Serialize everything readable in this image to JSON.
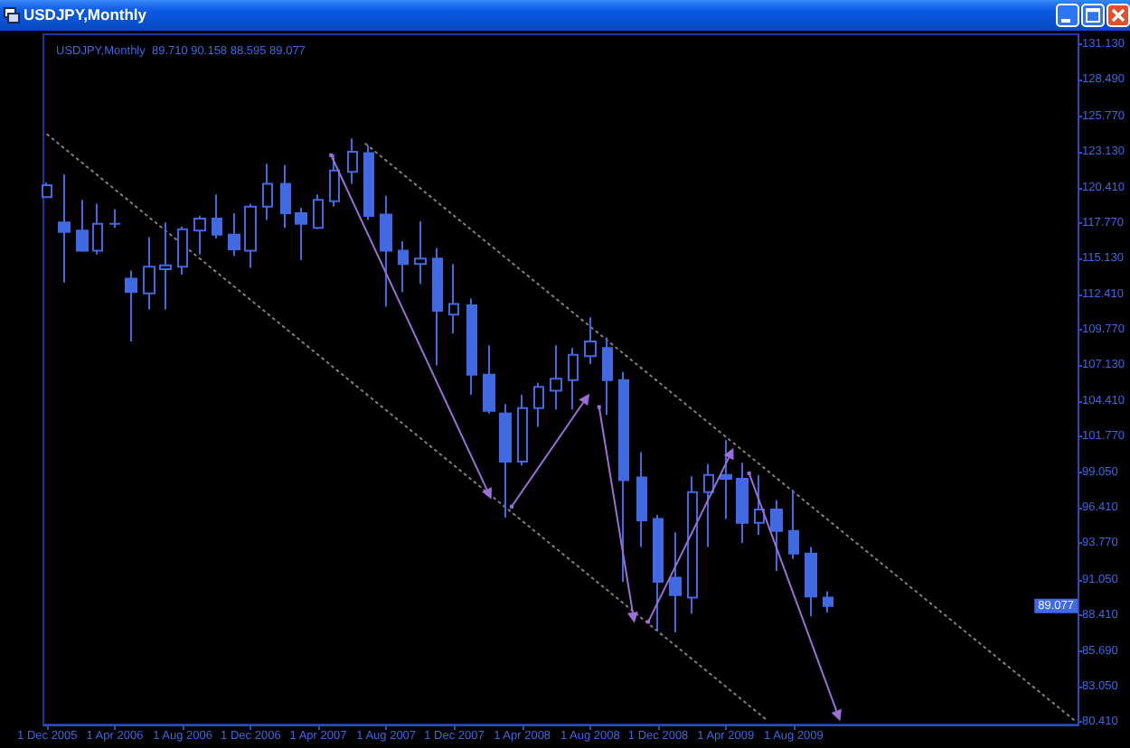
{
  "chart_data": {
    "type": "candlestick",
    "title": "USDJPY,Monthly",
    "subtitle": "USDJPY,Monthly  89.710 90.158 88.595 89.077",
    "series": [
      {
        "color": "#4169e1",
        "x": [
          "2005-12",
          "2006-01",
          "2006-02",
          "2006-03",
          "2006-04",
          "2006-05",
          "2006-06",
          "2006-07",
          "2006-08",
          "2006-09",
          "2006-10",
          "2006-11",
          "2006-12",
          "2007-01",
          "2007-02",
          "2007-03",
          "2007-04",
          "2007-05",
          "2007-06",
          "2007-07",
          "2007-08",
          "2007-09",
          "2007-10",
          "2007-11",
          "2007-12",
          "2008-01",
          "2008-02",
          "2008-03",
          "2008-04",
          "2008-05",
          "2008-06",
          "2008-07",
          "2008-08",
          "2008-09",
          "2008-10",
          "2008-11",
          "2008-12",
          "2009-01",
          "2009-02",
          "2009-03",
          "2009-04",
          "2009-05",
          "2009-06",
          "2009-07",
          "2009-08",
          "2009-09",
          "2009-10"
        ],
        "ohlc": [
          [
            119.7,
            120.8,
            119.7,
            120.6
          ],
          [
            117.8,
            121.4,
            113.3,
            117.1
          ],
          [
            117.2,
            119.5,
            115.6,
            115.7
          ],
          [
            115.7,
            119.2,
            115.4,
            117.7
          ],
          [
            117.7,
            118.8,
            117.4,
            117.7
          ],
          [
            113.6,
            114.2,
            108.9,
            112.6
          ],
          [
            112.5,
            116.7,
            111.3,
            114.5
          ],
          [
            114.3,
            117.8,
            111.3,
            114.6
          ],
          [
            114.5,
            117.5,
            113.9,
            117.3
          ],
          [
            117.2,
            118.3,
            115.4,
            118.1
          ],
          [
            118.1,
            119.9,
            116.6,
            116.9
          ],
          [
            116.9,
            118.5,
            115.3,
            115.8
          ],
          [
            115.7,
            119.2,
            114.4,
            119.0
          ],
          [
            119.0,
            122.2,
            118.0,
            120.7
          ],
          [
            120.7,
            122.1,
            117.4,
            118.5
          ],
          [
            118.5,
            118.9,
            115.0,
            117.7
          ],
          [
            117.4,
            119.9,
            117.3,
            119.5
          ],
          [
            119.4,
            122.9,
            119.0,
            121.7
          ],
          [
            121.6,
            124.1,
            120.7,
            123.1
          ],
          [
            123.0,
            123.6,
            118.0,
            118.3
          ],
          [
            118.4,
            119.8,
            111.5,
            115.7
          ],
          [
            115.7,
            116.4,
            112.6,
            114.7
          ],
          [
            114.7,
            117.9,
            113.2,
            115.1
          ],
          [
            115.1,
            115.9,
            107.1,
            111.2
          ],
          [
            110.9,
            114.7,
            109.5,
            111.7
          ],
          [
            111.6,
            112.1,
            104.9,
            106.4
          ],
          [
            106.4,
            108.6,
            103.5,
            103.7
          ],
          [
            103.5,
            104.2,
            95.7,
            99.9
          ],
          [
            99.9,
            104.9,
            99.6,
            103.9
          ],
          [
            103.9,
            105.8,
            102.5,
            105.5
          ],
          [
            105.2,
            108.6,
            103.8,
            106.1
          ],
          [
            106.0,
            108.4,
            103.8,
            107.9
          ],
          [
            107.8,
            110.7,
            107.2,
            108.9
          ],
          [
            108.4,
            109.2,
            103.4,
            106.0
          ],
          [
            106.0,
            106.6,
            90.9,
            98.5
          ],
          [
            98.7,
            100.6,
            93.5,
            95.5
          ],
          [
            95.6,
            95.9,
            87.2,
            90.9
          ],
          [
            91.2,
            94.6,
            87.1,
            89.9
          ],
          [
            89.7,
            98.8,
            88.5,
            97.6
          ],
          [
            97.6,
            99.7,
            93.5,
            98.9
          ],
          [
            98.9,
            101.5,
            95.6,
            98.6
          ],
          [
            98.6,
            99.8,
            93.8,
            95.3
          ],
          [
            95.3,
            98.9,
            94.4,
            96.3
          ],
          [
            96.3,
            97.0,
            91.7,
            94.7
          ],
          [
            94.7,
            97.8,
            92.6,
            93.0
          ],
          [
            93.0,
            93.5,
            88.3,
            89.8
          ],
          [
            89.71,
            90.158,
            88.595,
            89.077
          ]
        ]
      },
      {
        "type": "line",
        "color": "#808080",
        "line_style": "dotted",
        "x": [
          "2005-12",
          "2009-06-15"
        ],
        "values": [
          124.4,
          80.5
        ]
      },
      {
        "type": "line",
        "color": "#808080",
        "line_style": "dotted",
        "x": [
          "2007-06-25",
          "2010-12-21"
        ],
        "values": [
          123.7,
          80.4
        ]
      }
    ],
    "xlim": [
      "2005-11-24",
      "2010-12-25"
    ],
    "xticks": [
      {
        "value": "2005-12",
        "label": "1 Dec 2005"
      },
      {
        "value": "2006-04",
        "label": "1 Apr 2006"
      },
      {
        "value": "2006-08",
        "label": "1 Aug 2006"
      },
      {
        "value": "2006-12",
        "label": "1 Dec 2006"
      },
      {
        "value": "2007-04",
        "label": "1 Apr 2007"
      },
      {
        "value": "2007-08",
        "label": "1 Aug 2007"
      },
      {
        "value": "2007-12",
        "label": "1 Dec 2007"
      },
      {
        "value": "2008-04",
        "label": "1 Apr 2008"
      },
      {
        "value": "2008-08",
        "label": "1 Aug 2008"
      },
      {
        "value": "2008-12",
        "label": "1 Dec 2008"
      },
      {
        "value": "2009-04",
        "label": "1 Apr 2009"
      },
      {
        "value": "2009-08",
        "label": "1 Aug 2009"
      }
    ],
    "ylim": [
      80.2,
      131.9
    ],
    "yticks": [
      {
        "value": 131.13,
        "label": "131.130"
      },
      {
        "value": 128.49,
        "label": "128.490"
      },
      {
        "value": 125.77,
        "label": "125.770"
      },
      {
        "value": 123.13,
        "label": "123.130"
      },
      {
        "value": 120.41,
        "label": "120.410"
      },
      {
        "value": 117.77,
        "label": "117.770"
      },
      {
        "value": 115.13,
        "label": "115.130"
      },
      {
        "value": 112.41,
        "label": "112.410"
      },
      {
        "value": 109.77,
        "label": "109.770"
      },
      {
        "value": 107.13,
        "label": "107.130"
      },
      {
        "value": 104.41,
        "label": "104.410"
      },
      {
        "value": 101.77,
        "label": "101.770"
      },
      {
        "value": 99.05,
        "label": "99.050"
      },
      {
        "value": 96.41,
        "label": "96.410"
      },
      {
        "value": 93.77,
        "label": "93.770"
      },
      {
        "value": 91.05,
        "label": "91.050"
      },
      {
        "value": 88.41,
        "label": "88.410"
      },
      {
        "value": 85.69,
        "label": "85.690"
      },
      {
        "value": 83.05,
        "label": "83.050"
      },
      {
        "value": 80.41,
        "label": "80.410"
      }
    ],
    "annotations": [
      {
        "text": "89.077",
        "y": 89.077
      }
    ],
    "grid": false,
    "marker": "none"
  }
}
